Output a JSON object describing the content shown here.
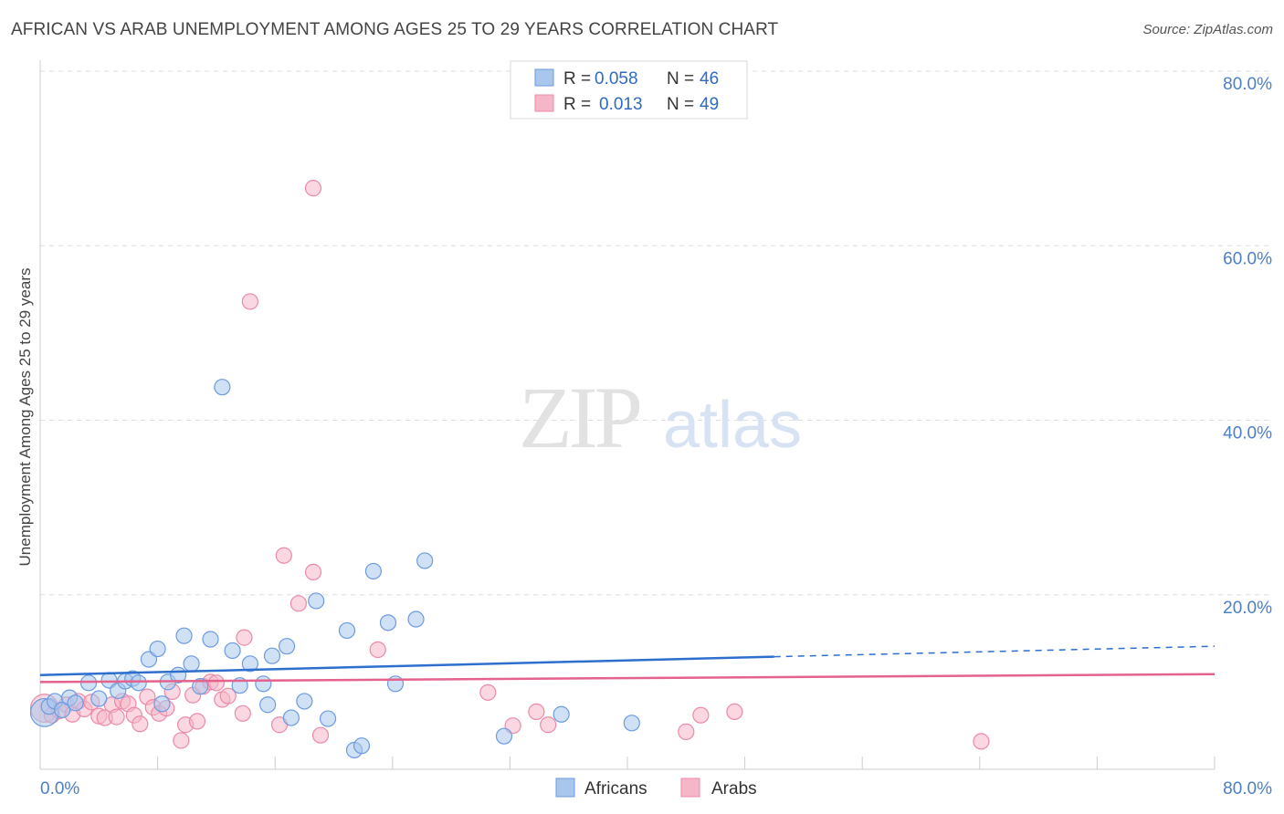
{
  "title": "AFRICAN VS ARAB UNEMPLOYMENT AMONG AGES 25 TO 29 YEARS CORRELATION CHART",
  "source": "Source: ZipAtlas.com",
  "watermark": {
    "zip": "ZIP",
    "atlas": "atlas"
  },
  "colors": {
    "african_fill": "#a9c6ec",
    "african_stroke": "#6c9be0",
    "african_line": "#2e6fce",
    "arab_fill": "#f6b6c9",
    "arab_stroke": "#ec8aa7",
    "arab_line": "#e4628b",
    "axis_text": "#4a7fc9",
    "grid": "#dddddd"
  },
  "legend_top": [
    {
      "r_label": "R =",
      "r_value": "0.058",
      "n_label": "N =",
      "n_value": "46"
    },
    {
      "r_label": "R =",
      "r_value": "0.013",
      "n_label": "N =",
      "n_value": "49"
    }
  ],
  "legend_bottom": [
    "Africans",
    "Arabs"
  ],
  "chart_data": {
    "type": "scatter",
    "title": "AFRICAN VS ARAB UNEMPLOYMENT AMONG AGES 25 TO 29 YEARS CORRELATION CHART",
    "xlabel": "",
    "ylabel": "Unemployment Among Ages 25 to 29 years",
    "xlim": [
      0,
      80
    ],
    "ylim": [
      0,
      80
    ],
    "x_tick_labels": [
      "0.0%",
      "80.0%"
    ],
    "y_ticks": [
      20,
      40,
      60,
      80
    ],
    "y_tick_labels": [
      "20.0%",
      "40.0%",
      "60.0%",
      "80.0%"
    ],
    "series": [
      {
        "name": "Africans",
        "r": 0.058,
        "n": 46,
        "trend": {
          "x0": 0,
          "y0": 10.8,
          "x1": 50,
          "y1": 12.9,
          "dash_x1": 80,
          "dash_y1": 14.1
        },
        "points": [
          [
            0.3,
            6.5,
            1.8
          ],
          [
            0.6,
            7.2,
            1
          ],
          [
            1.0,
            7.8,
            1
          ],
          [
            1.5,
            6.8,
            1
          ],
          [
            2.0,
            8.2,
            1
          ],
          [
            2.4,
            7.6,
            1
          ],
          [
            3.3,
            9.9,
            1
          ],
          [
            4.0,
            8.1,
            1
          ],
          [
            4.7,
            10.2,
            1
          ],
          [
            5.3,
            9.0,
            1
          ],
          [
            5.8,
            10.1,
            1
          ],
          [
            6.3,
            10.4,
            1
          ],
          [
            6.7,
            9.9,
            1
          ],
          [
            7.4,
            12.6,
            1
          ],
          [
            8.0,
            13.8,
            1
          ],
          [
            8.3,
            7.5,
            1
          ],
          [
            8.7,
            10.0,
            1
          ],
          [
            9.4,
            10.8,
            1
          ],
          [
            9.8,
            15.3,
            1
          ],
          [
            10.3,
            12.1,
            1
          ],
          [
            10.9,
            9.5,
            1
          ],
          [
            11.6,
            14.9,
            1
          ],
          [
            12.4,
            43.8,
            1
          ],
          [
            13.1,
            13.6,
            1
          ],
          [
            13.6,
            9.6,
            1
          ],
          [
            14.3,
            12.1,
            1
          ],
          [
            15.2,
            9.8,
            1
          ],
          [
            15.5,
            7.4,
            1
          ],
          [
            15.8,
            13.0,
            1
          ],
          [
            16.8,
            14.1,
            1
          ],
          [
            17.1,
            5.9,
            1
          ],
          [
            18.0,
            7.8,
            1
          ],
          [
            18.8,
            19.3,
            1
          ],
          [
            19.6,
            5.8,
            1
          ],
          [
            20.9,
            15.9,
            1
          ],
          [
            21.4,
            2.2,
            1
          ],
          [
            21.9,
            2.7,
            1
          ],
          [
            22.7,
            22.7,
            1
          ],
          [
            23.7,
            16.8,
            1
          ],
          [
            24.2,
            9.8,
            1
          ],
          [
            25.6,
            17.2,
            1
          ],
          [
            26.2,
            23.9,
            1
          ],
          [
            31.6,
            3.8,
            1
          ],
          [
            35.5,
            6.3,
            1
          ],
          [
            40.3,
            5.3,
            1
          ]
        ]
      },
      {
        "name": "Arabs",
        "r": 0.013,
        "n": 49,
        "trend": {
          "x0": 0,
          "y0": 10.0,
          "x1": 80,
          "y1": 10.9
        },
        "points": [
          [
            0.3,
            7.0,
            1.8
          ],
          [
            0.8,
            6.2,
            1
          ],
          [
            1.3,
            6.7,
            1
          ],
          [
            1.8,
            7.4,
            1
          ],
          [
            2.2,
            6.3,
            1
          ],
          [
            2.6,
            7.8,
            1
          ],
          [
            3.0,
            6.9,
            1
          ],
          [
            3.5,
            7.7,
            1
          ],
          [
            4.0,
            6.1,
            1
          ],
          [
            4.4,
            5.9,
            1
          ],
          [
            4.9,
            7.4,
            1
          ],
          [
            5.2,
            6.0,
            1
          ],
          [
            5.6,
            7.8,
            1
          ],
          [
            6.0,
            7.5,
            1
          ],
          [
            6.4,
            6.2,
            1
          ],
          [
            6.8,
            5.2,
            1
          ],
          [
            7.3,
            8.3,
            1
          ],
          [
            7.7,
            7.1,
            1
          ],
          [
            8.1,
            6.4,
            1
          ],
          [
            8.6,
            7.0,
            1
          ],
          [
            9.0,
            8.9,
            1
          ],
          [
            9.6,
            3.3,
            1
          ],
          [
            9.9,
            5.1,
            1
          ],
          [
            10.4,
            8.5,
            1
          ],
          [
            10.7,
            5.5,
            1
          ],
          [
            11.1,
            9.5,
            1
          ],
          [
            11.6,
            10.0,
            1
          ],
          [
            12.0,
            9.9,
            1
          ],
          [
            12.4,
            8.0,
            1
          ],
          [
            12.8,
            8.4,
            1
          ],
          [
            13.8,
            6.4,
            1
          ],
          [
            13.9,
            15.1,
            1
          ],
          [
            14.3,
            53.6,
            1
          ],
          [
            16.3,
            5.1,
            1
          ],
          [
            16.6,
            24.5,
            1
          ],
          [
            17.6,
            19.0,
            1
          ],
          [
            18.6,
            22.6,
            1
          ],
          [
            18.6,
            66.6,
            1
          ],
          [
            19.1,
            3.9,
            1
          ],
          [
            23.0,
            13.7,
            1
          ],
          [
            30.5,
            8.8,
            1
          ],
          [
            32.2,
            5.0,
            1
          ],
          [
            33.8,
            6.6,
            1
          ],
          [
            34.6,
            5.1,
            1
          ],
          [
            44.0,
            4.3,
            1
          ],
          [
            45.0,
            6.2,
            1
          ],
          [
            47.3,
            6.6,
            1
          ],
          [
            64.1,
            3.2,
            1
          ]
        ]
      }
    ]
  }
}
